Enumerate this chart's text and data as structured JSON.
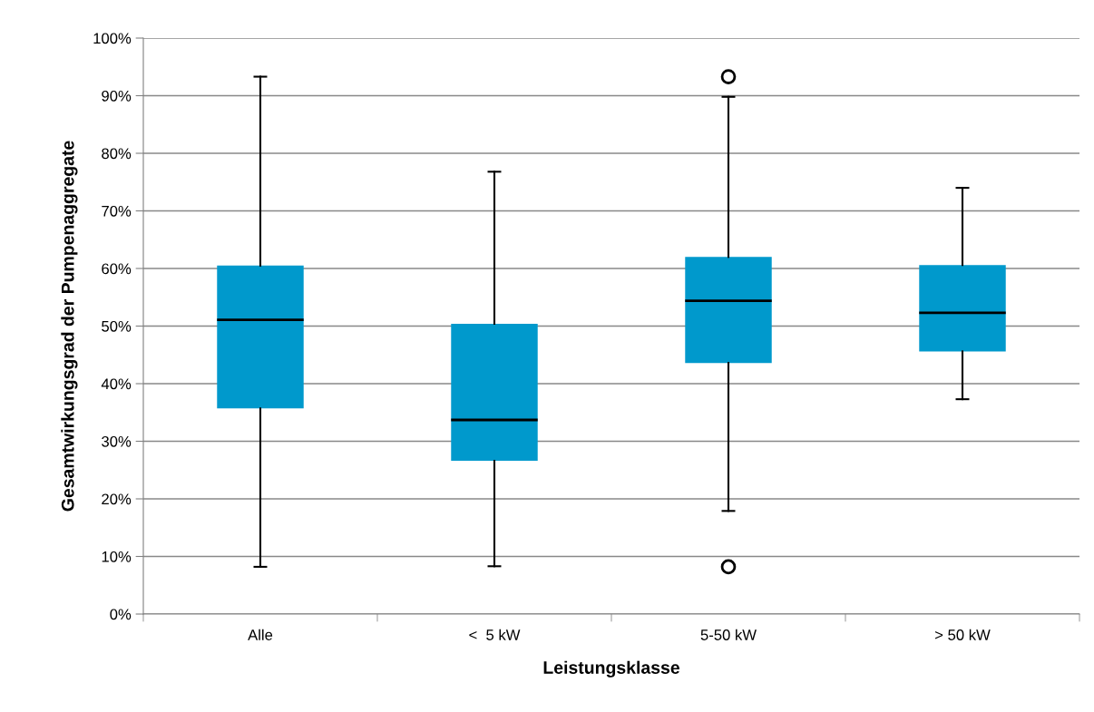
{
  "chart_data": {
    "type": "box",
    "xlabel": "Leistungsklasse",
    "ylabel": "Gesamtwirkungsgrad der Pumpenaggregate",
    "categories": [
      "Alle",
      "<  5 kW",
      "5-50 kW",
      "> 50 kW"
    ],
    "color": "#0099cc",
    "boxes": [
      {
        "low": 8.2,
        "q1": 35.7,
        "median": 51.1,
        "q3": 60.5,
        "high": 93.3
      },
      {
        "low": 8.3,
        "q1": 26.6,
        "median": 33.7,
        "q3": 50.4,
        "high": 76.8
      },
      {
        "low": 17.9,
        "q1": 43.6,
        "median": 54.4,
        "q3": 62.0,
        "high": 89.8,
        "outliers": [
          93.3,
          8.2
        ]
      },
      {
        "low": 37.3,
        "q1": 45.6,
        "median": 52.3,
        "q3": 60.6,
        "high": 74.0
      }
    ],
    "ylim": [
      0,
      100
    ],
    "yticks": [
      {
        "value": 0,
        "label": "0%"
      },
      {
        "value": 10,
        "label": "10%"
      },
      {
        "value": 20,
        "label": "20%"
      },
      {
        "value": 30,
        "label": "30%"
      },
      {
        "value": 40,
        "label": "40%"
      },
      {
        "value": 50,
        "label": "50%"
      },
      {
        "value": 60,
        "label": "60%"
      },
      {
        "value": 70,
        "label": "70%"
      },
      {
        "value": 80,
        "label": "80%"
      },
      {
        "value": 90,
        "label": "90%"
      },
      {
        "value": 100,
        "label": "100%"
      }
    ],
    "grid": "y"
  }
}
